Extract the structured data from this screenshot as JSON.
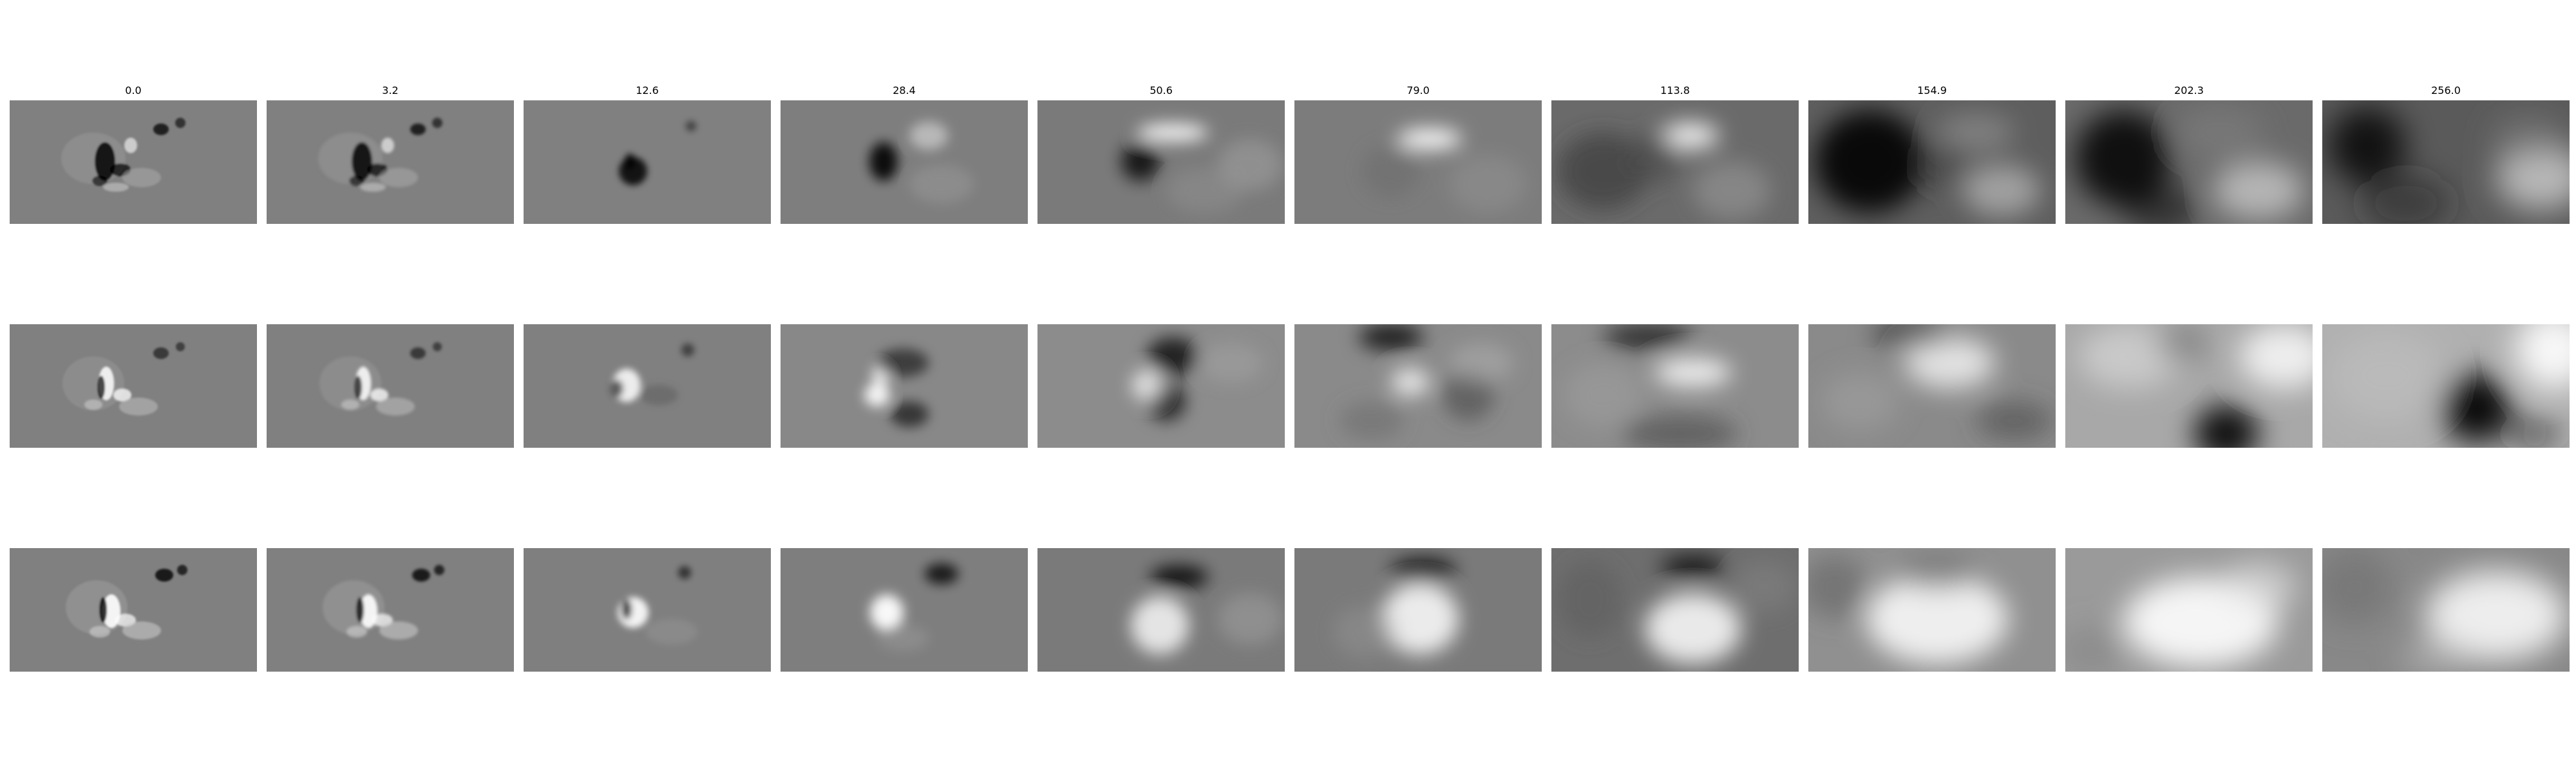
{
  "figure": {
    "column_titles": [
      "0.0",
      "3.2",
      "12.6",
      "28.4",
      "50.6",
      "79.0",
      "113.8",
      "154.9",
      "202.3",
      "256.0"
    ],
    "rows": 3,
    "colormap": "gray",
    "background_color": "#ffffff",
    "neutral_gray": "#808080"
  }
}
